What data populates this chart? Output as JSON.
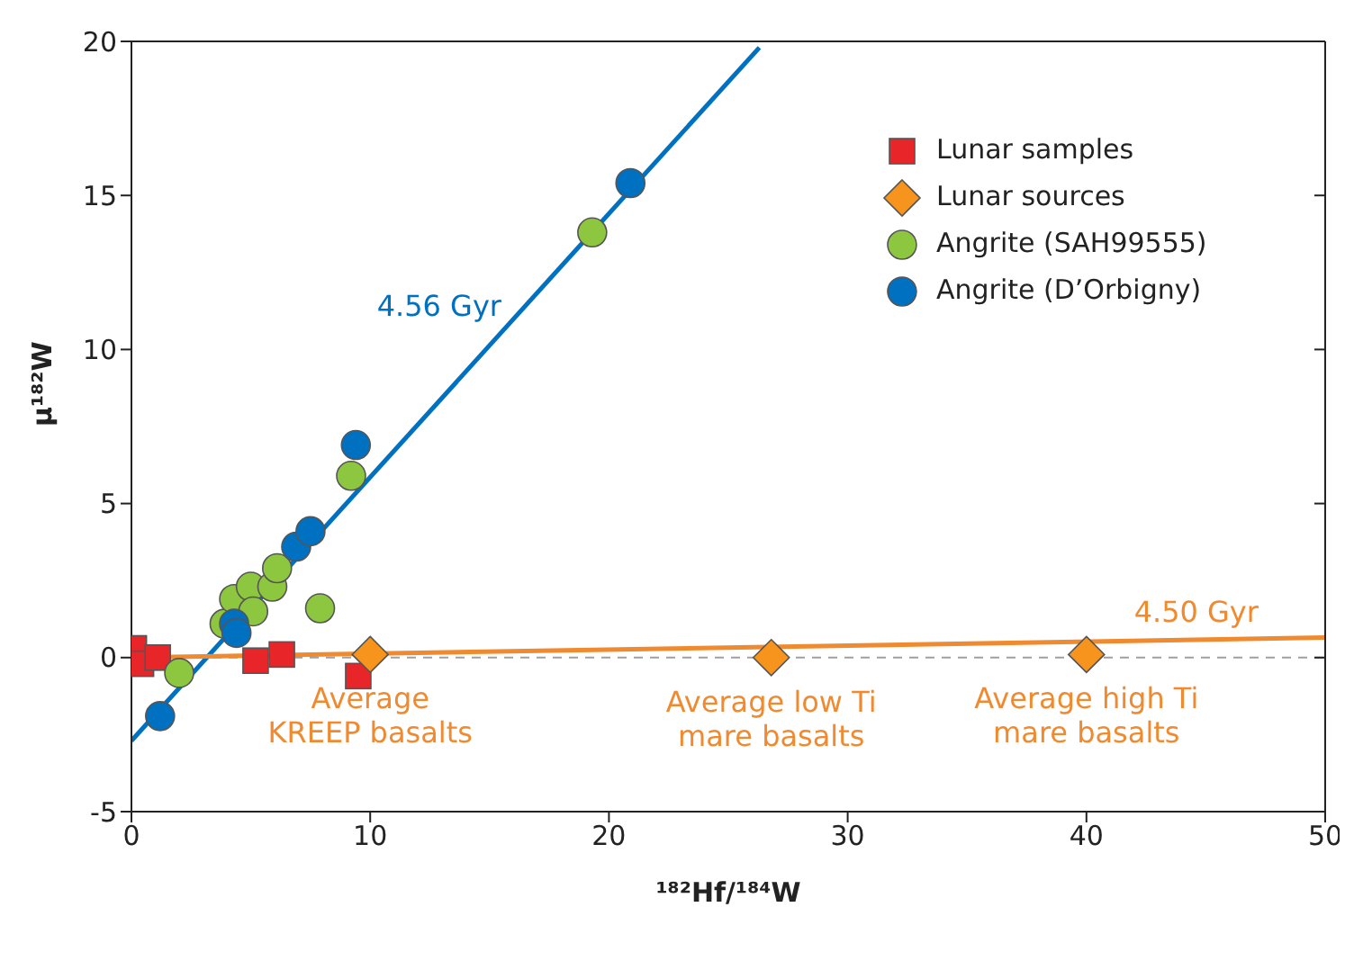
{
  "chart_data": {
    "type": "scatter",
    "xlabel": "¹⁸²Hf/¹⁸⁴W",
    "ylabel": "μ¹⁸²W",
    "xlim": [
      0,
      50
    ],
    "xticks": [
      0,
      10,
      20,
      30,
      40,
      50
    ],
    "ylim": [
      -5,
      20
    ],
    "yticks": [
      -5,
      0,
      5,
      10,
      15,
      20
    ],
    "legend": "top right",
    "series": [
      {
        "type": "line",
        "color": "#0070c0",
        "x": [
          0,
          26.3
        ],
        "values": [
          -2.7,
          19.8
        ]
      },
      {
        "type": "line",
        "color": "#f08a30",
        "x": [
          0,
          50
        ],
        "values": [
          0,
          0.65
        ]
      },
      {
        "name": "Lunar samples",
        "color": "#e8262a",
        "marker": "square",
        "x": [
          0.1,
          0.4,
          1.1,
          5.2,
          6.3,
          9.5
        ],
        "values": [
          0.3,
          -0.2,
          0.0,
          -0.1,
          0.1,
          -0.6
        ]
      },
      {
        "name": "Lunar sources",
        "color": "#f7941d",
        "marker": "diamond",
        "x": [
          10,
          26.8,
          40
        ],
        "values": [
          0.1,
          0,
          0.1
        ]
      },
      {
        "name": "Angrite (SAH99555)",
        "color": "#8dc63f",
        "marker": "circle",
        "x": [
          2.0,
          3.9,
          4.3,
          5.0,
          5.1,
          5.9,
          6.1,
          7.9,
          9.2,
          19.3
        ],
        "values": [
          -0.5,
          1.1,
          1.9,
          2.3,
          1.5,
          2.3,
          2.9,
          1.6,
          5.9,
          13.8
        ]
      },
      {
        "name": "Angrite (D’Orbigny)",
        "color": "#0070c0",
        "marker": "circle",
        "x": [
          1.2,
          4.3,
          4.4,
          6.9,
          7.5,
          9.4,
          20.9
        ],
        "values": [
          -1.9,
          1.1,
          0.8,
          3.6,
          4.1,
          6.9,
          15.4
        ]
      }
    ],
    "ref_lines": [
      {
        "axis": "y",
        "value": 0,
        "color": "#a0a0a0",
        "line_style": "dashed"
      }
    ],
    "annotations": [
      {
        "text": "4.56 Gyr",
        "x": 16.1,
        "y": 11.1
      },
      {
        "text": "4.50 Gyr",
        "x": 44.6,
        "y": 0.58
      },
      {
        "text": "Average\nKREEP basalts",
        "x": 10,
        "y": 0.1
      },
      {
        "text": "Average low Ti\nmare basalts",
        "x": 26.8,
        "y": 0
      },
      {
        "text": "Average high Ti\nmare basalts",
        "x": 40,
        "y": 0.1
      }
    ]
  }
}
